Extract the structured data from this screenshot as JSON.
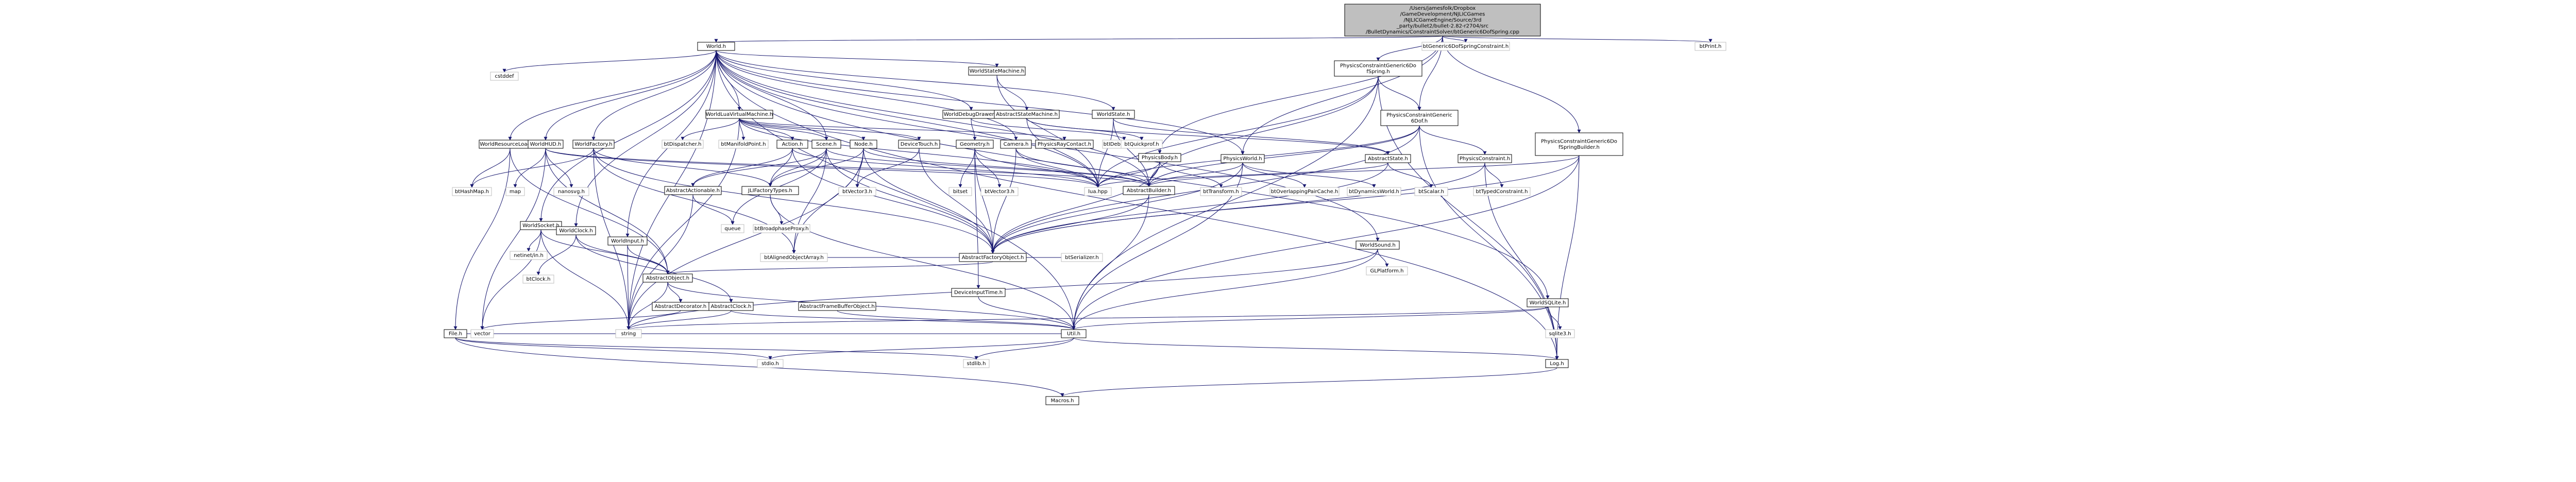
{
  "root": {
    "label_lines": [
      "/Users/jamesfolk/Dropbox",
      "/GameDevelopment/NJLICGames",
      "/NJLICGameEngine/Source/3rd",
      "_party/bullet2/bullet-2.82-r2704/src",
      "/BulletDynamics/ConstraintSolver/btGeneric6DofSpring.cpp"
    ],
    "label": "btGeneric6DofSpring.cpp"
  },
  "nodes": {
    "world_h": "World.h",
    "btgeneric6dofspringconstraint_h": "btGeneric6DofSpringConstraint.h",
    "btprint_h": "btPrint.h",
    "cstddef": "cstddef",
    "worldstatemachine_h": "WorldStateMachine.h",
    "physicsconstraintgeneric6dofspring_h": "PhysicsConstraintGeneric6DofSpring.h",
    "worldluavirtualmachine_h": "WorldLuaVirtualMachine.h",
    "worlddebugdrawer_h": "WorldDebugDrawer.h",
    "abstractstatemachine_h": "AbstractStateMachine.h",
    "worldstate_h": "WorldState.h",
    "physicsconstraintgeneric6dof_h": "PhysicsConstraintGeneric6Dof.h",
    "physicsconstraintgeneric6dofspringbuilder_h": "PhysicsConstraintGeneric6DofSpringBuilder.h",
    "worldresourceloader_h": "WorldResourceLoader.h",
    "worldhud_h": "WorldHUD.h",
    "worldfactory_h": "WorldFactory.h",
    "btdispatcher_h": "btDispatcher.h",
    "btmanifoldpoint_h": "btManifoldPoint.h",
    "action_h": "Action.h",
    "scene_h": "Scene.h",
    "node_h": "Node.h",
    "devicetouch_h": "DeviceTouch.h",
    "geometry_h": "Geometry.h",
    "camera_h": "Camera.h",
    "physicsraycontact_h": "PhysicsRayContact.h",
    "btdebugdraw_h": "btIDebugDraw.h",
    "btquickprof_h": "btQuickprof.h",
    "physicsbody_h": "PhysicsBody.h",
    "physicsworld_h": "PhysicsWorld.h",
    "abstractstate_h": "AbstractState.h",
    "physicsconstraint_h": "PhysicsConstraint.h",
    "bthashmap_h": "btHashMap.h",
    "map": "map",
    "nanosvg_h": "nanosvg.h",
    "abstractactionable_h": "AbstractActionable.h",
    "njlifactorytypes_h": "JLIFactoryTypes.h",
    "btvector3_h": "btVector3.h",
    "bitset": "bitset",
    "btvector3_h2": "btVector3.h",
    "lua_hpp": "lua.hpp",
    "abstractbuilder_h": "AbstractBuilder.h",
    "bttransform_h": "btTransform.h",
    "btoverlappingpaircache_h": "btOverlappingPairCache.h",
    "btdynamicsworld_h": "btDynamicsWorld.h",
    "btscalar_h": "btScalar.h",
    "bttypedconstraint_h": "btTypedConstraint.h",
    "worldsocket_h": "WorldSocket.h",
    "worldclock_h": "WorldClock.h",
    "netinetin_h": "netinet/in.h",
    "queue": "queue",
    "worldinput_h": "WorldInput.h",
    "btbroadphaseproxy_h": "btBroadphaseProxy.h",
    "abstractfactoryobject_h": "AbstractFactoryObject.h",
    "btalignedobjectarray_h": "btAlignedObjectArray.h",
    "btserializer_h": "btSerializer.h",
    "worldsound_h": "WorldSound.h",
    "glplatform_h": "GLPlatform.h",
    "btclock_h": "btClock.h",
    "abstractobject_h": "AbstractObject.h",
    "abstractdecorator_h": "AbstractDecorator.h",
    "abstractclock_h": "AbstractClock.h",
    "abstractframebufferobject_h": "AbstractFrameBufferObject.h",
    "devicereadertime_h": "DeviceInputTime.h",
    "worldsqlite_h": "WorldSQLite.h",
    "sqlite3_h": "sqlite3.h",
    "file_h": "File.h",
    "vector": "vector",
    "string": "string",
    "util_h": "Util.h",
    "log_h": "Log.h",
    "stdio_h": "stdio.h",
    "stdlib_h": "stdlib.h",
    "macros_h": "Macros.h"
  }
}
